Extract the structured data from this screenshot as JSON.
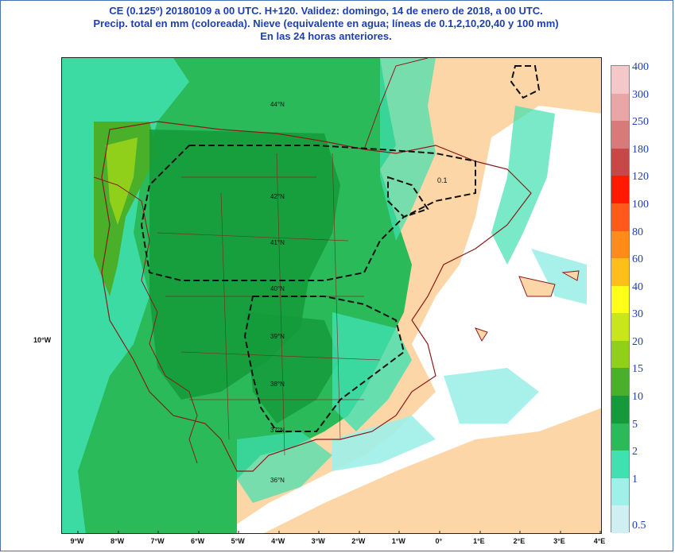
{
  "title": {
    "line1": "CE (0.125º) 20180109 a 00 UTC.  H+120. Validez: domingo, 14 de enero de 2018,  a  00 UTC.",
    "line2": "Precip. total en mm (coloreada). Nieve (equivalente en agua; líneas de 0.1,2,10,20,40 y 100 mm)",
    "line3": "En las 24 horas anteriores."
  },
  "longitude_labels": [
    "9°W",
    "8°W",
    "7°W",
    "6°W",
    "5°W",
    "4°W",
    "3°W",
    "2°W",
    "1°W",
    "0°",
    "1°E",
    "2°E",
    "3°E",
    "4°E"
  ],
  "latitude_axis_label": "10°W",
  "map_lat_labels": [
    "44°N",
    "42°N",
    "41°N",
    "40°N",
    "39°N",
    "38°N",
    "37°N",
    "36°N"
  ],
  "contour_label": "0.1",
  "legend": {
    "labels": [
      "400",
      "300",
      "250",
      "180",
      "120",
      "100",
      "80",
      "60",
      "40",
      "30",
      "20",
      "15",
      "10",
      "5",
      "2",
      "1",
      "0.5"
    ],
    "colors": [
      "#f4c8c8",
      "#e8a6a6",
      "#d87a7a",
      "#c84848",
      "#ff1a00",
      "#ff5a1a",
      "#ff8c1a",
      "#ffbf1a",
      "#ffff1a",
      "#c8e61a",
      "#90d01a",
      "#4ab02a",
      "#149a3a",
      "#2aba5a",
      "#40e0b0",
      "#9ff0e8",
      "#cfeff2"
    ]
  },
  "colors": {
    "land": "#fcd6a6",
    "sea_dry": "#ffffff",
    "border": "#8b1a1a",
    "title": "#1f3fb0"
  }
}
